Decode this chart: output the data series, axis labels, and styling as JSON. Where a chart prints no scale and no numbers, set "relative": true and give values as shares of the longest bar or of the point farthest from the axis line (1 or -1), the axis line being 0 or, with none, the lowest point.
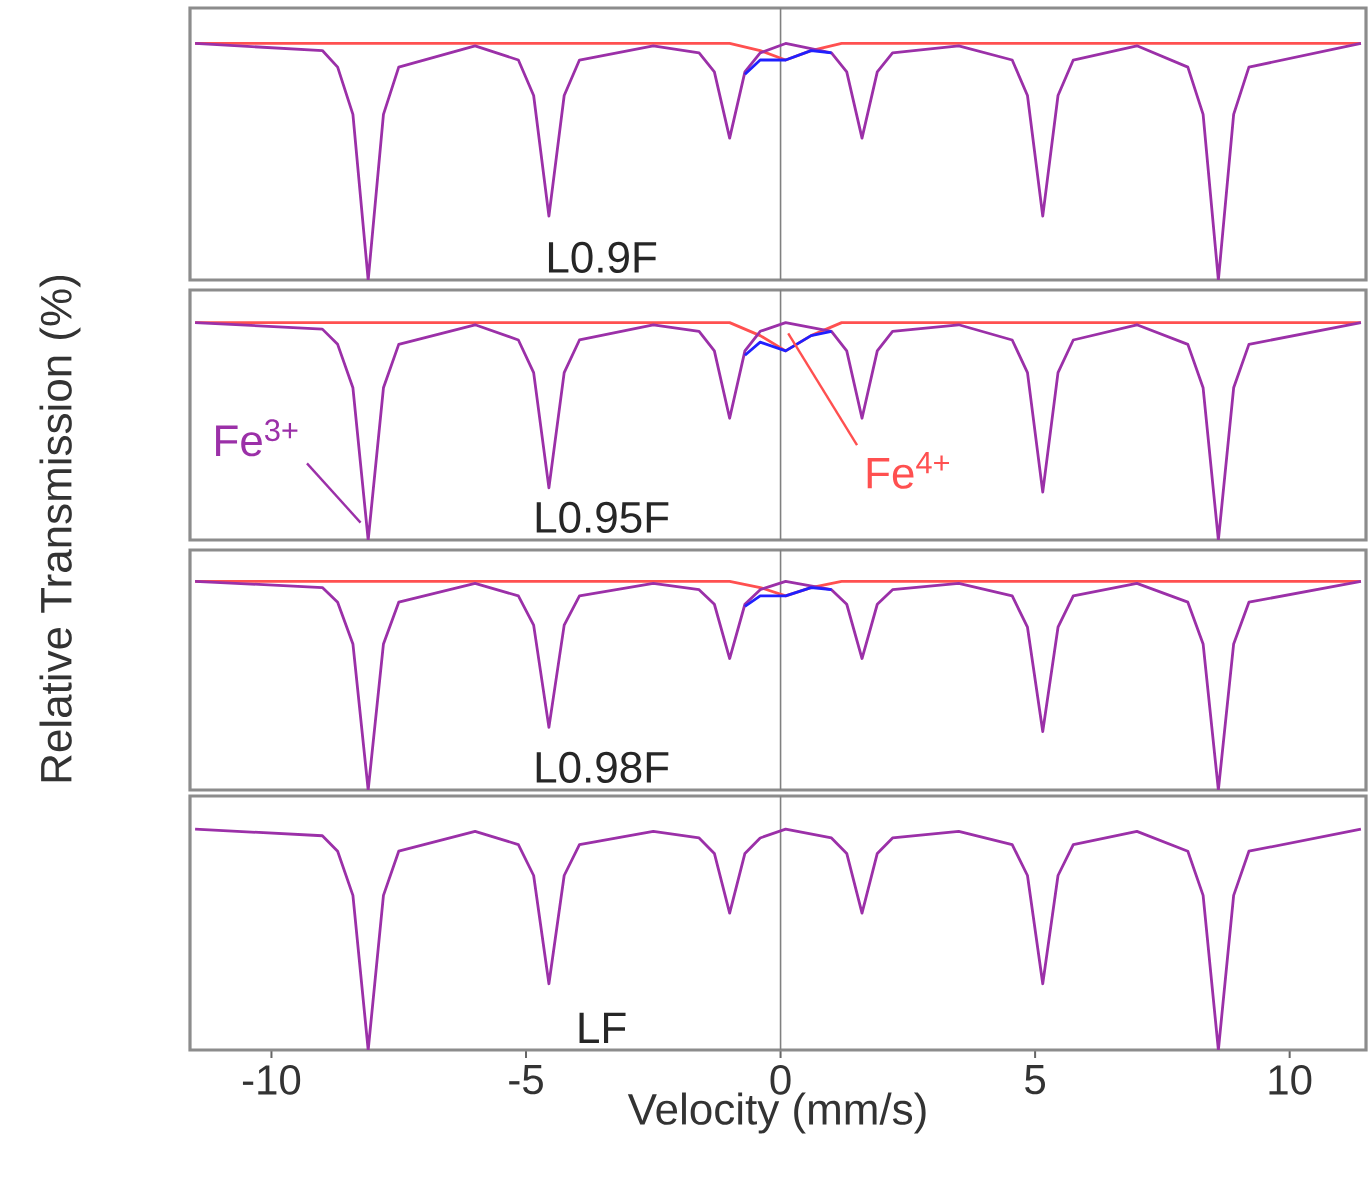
{
  "chart_data": [
    {
      "type": "line",
      "relative": true,
      "ylabel": "Relative Transmission (%)",
      "xlim": [
        -11.6,
        11.5
      ],
      "xticks": [
        -10,
        -5,
        0,
        5,
        10
      ],
      "tick_labels": false,
      "annotations": [
        "L0.9F"
      ],
      "ref_lines": [
        {
          "axis": "x",
          "value": 0,
          "color": "#808080"
        }
      ],
      "x": [
        -11.5,
        -9,
        -8.7,
        -8.4,
        -8.1,
        -7.8,
        -7.5,
        -6,
        -5.15,
        -4.85,
        -4.55,
        -4.25,
        -3.95,
        -2.5,
        -1.6,
        -1.3,
        -1.0,
        -0.7,
        -0.4,
        0.1,
        1.0,
        1.3,
        1.6,
        1.9,
        2.2,
        3.5,
        4.55,
        4.85,
        5.15,
        5.45,
        5.75,
        7.0,
        8.0,
        8.3,
        8.6,
        8.9,
        9.2,
        11.4
      ],
      "series": [
        {
          "color": "#ff5050",
          "x": [
            -11.5,
            -1.0,
            -0.4,
            0.1,
            0.6,
            1.2,
            11.4
          ],
          "values": [
            1,
            1,
            0.97,
            0.93,
            0.97,
            1,
            1
          ]
        },
        {
          "color": "#9b30a8",
          "values": [
            1,
            0.97,
            0.9,
            0.7,
            0,
            0.7,
            0.9,
            0.99,
            0.93,
            0.78,
            0.27,
            0.78,
            0.93,
            0.99,
            0.96,
            0.88,
            0.6,
            0.88,
            0.96,
            1,
            0.96,
            0.88,
            0.6,
            0.88,
            0.96,
            0.99,
            0.93,
            0.78,
            0.27,
            0.78,
            0.93,
            0.99,
            0.9,
            0.7,
            0,
            0.7,
            0.9,
            1
          ]
        },
        {
          "color": "#2020ff",
          "x": [
            -0.7,
            -0.4,
            0.1,
            0.6,
            1.0
          ],
          "values": [
            0.87,
            0.93,
            0.93,
            0.97,
            0.96
          ]
        }
      ]
    },
    {
      "type": "line",
      "relative": true,
      "xlim": [
        -11.6,
        11.5
      ],
      "xticks": [
        -10,
        -5,
        0,
        5,
        10
      ],
      "tick_labels": false,
      "annotations": [
        "L0.95F"
      ],
      "ref_lines": [
        {
          "axis": "x",
          "value": 0,
          "color": "#808080"
        }
      ],
      "x": [
        -11.5,
        -9,
        -8.7,
        -8.4,
        -8.1,
        -7.8,
        -7.5,
        -6,
        -5.15,
        -4.85,
        -4.55,
        -4.25,
        -3.95,
        -2.5,
        -1.6,
        -1.3,
        -1.0,
        -0.7,
        -0.4,
        0.1,
        1.0,
        1.3,
        1.6,
        1.9,
        2.2,
        3.5,
        4.55,
        4.85,
        5.15,
        5.45,
        5.75,
        7.0,
        8.0,
        8.3,
        8.6,
        8.9,
        9.2,
        11.4
      ],
      "series": [
        {
          "name": "Fe$^{4+}$",
          "color": "#ff5050",
          "x": [
            -11.5,
            -1.0,
            -0.4,
            0.1,
            0.6,
            1.2,
            11.4
          ],
          "values": [
            1,
            1,
            0.94,
            0.87,
            0.94,
            1,
            1
          ]
        },
        {
          "name": "Fe$^{3+}$",
          "color": "#9b30a8",
          "values": [
            1,
            0.97,
            0.9,
            0.7,
            0,
            0.7,
            0.9,
            0.99,
            0.92,
            0.77,
            0.24,
            0.77,
            0.92,
            0.99,
            0.96,
            0.87,
            0.56,
            0.87,
            0.96,
            1,
            0.96,
            0.87,
            0.56,
            0.87,
            0.96,
            0.99,
            0.92,
            0.77,
            0.22,
            0.77,
            0.92,
            0.99,
            0.9,
            0.7,
            0,
            0.7,
            0.9,
            1
          ]
        },
        {
          "color": "#2020ff",
          "x": [
            -0.7,
            -0.4,
            0.1,
            0.6,
            1.0
          ],
          "values": [
            0.85,
            0.91,
            0.87,
            0.94,
            0.96
          ]
        }
      ]
    },
    {
      "type": "line",
      "relative": true,
      "xlim": [
        -11.6,
        11.5
      ],
      "xticks": [
        -10,
        -5,
        0,
        5,
        10
      ],
      "tick_labels": false,
      "annotations": [
        "L0.98F"
      ],
      "ref_lines": [
        {
          "axis": "x",
          "value": 0,
          "color": "#808080"
        }
      ],
      "x": [
        -11.5,
        -9,
        -8.7,
        -8.4,
        -8.1,
        -7.8,
        -7.5,
        -6,
        -5.15,
        -4.85,
        -4.55,
        -4.25,
        -3.95,
        -2.5,
        -1.6,
        -1.3,
        -1.0,
        -0.7,
        -0.4,
        0.1,
        1.0,
        1.3,
        1.6,
        1.9,
        2.2,
        3.5,
        4.55,
        4.85,
        5.15,
        5.45,
        5.75,
        7.0,
        8.0,
        8.3,
        8.6,
        8.9,
        9.2,
        11.4
      ],
      "series": [
        {
          "color": "#ff5050",
          "x": [
            -11.5,
            -1.0,
            -0.4,
            0.1,
            0.6,
            1.2,
            11.4
          ],
          "values": [
            1,
            1,
            0.97,
            0.93,
            0.97,
            1,
            1
          ]
        },
        {
          "color": "#9b30a8",
          "values": [
            1,
            0.97,
            0.9,
            0.7,
            0,
            0.7,
            0.9,
            0.99,
            0.93,
            0.79,
            0.3,
            0.79,
            0.93,
            0.99,
            0.96,
            0.89,
            0.63,
            0.89,
            0.96,
            1,
            0.96,
            0.89,
            0.63,
            0.89,
            0.96,
            0.99,
            0.93,
            0.78,
            0.28,
            0.78,
            0.93,
            0.99,
            0.9,
            0.7,
            0,
            0.7,
            0.9,
            1
          ]
        },
        {
          "color": "#2020ff",
          "x": [
            -0.7,
            -0.4,
            0.1,
            0.6,
            1.0
          ],
          "values": [
            0.88,
            0.93,
            0.93,
            0.97,
            0.96
          ]
        }
      ]
    },
    {
      "type": "line",
      "relative": true,
      "xlabel": "Velocity (mm/s)",
      "xlim": [
        -11.6,
        11.5
      ],
      "xticks": [
        -10,
        -5,
        0,
        5,
        10
      ],
      "tick_labels": "x",
      "annotations": [
        "LF"
      ],
      "ref_lines": [
        {
          "axis": "x",
          "value": 0,
          "color": "#808080"
        }
      ],
      "x": [
        -11.5,
        -9,
        -8.7,
        -8.4,
        -8.1,
        -7.8,
        -7.5,
        -6,
        -5.15,
        -4.85,
        -4.55,
        -4.25,
        -3.95,
        -2.5,
        -1.6,
        -1.3,
        -1.0,
        -0.7,
        -0.4,
        0.1,
        1.0,
        1.3,
        1.6,
        1.9,
        2.2,
        3.5,
        4.55,
        4.85,
        5.15,
        5.45,
        5.75,
        7.0,
        8.0,
        8.3,
        8.6,
        8.9,
        9.2,
        11.4
      ],
      "series": [
        {
          "color": "#9b30a8",
          "values": [
            1,
            0.97,
            0.9,
            0.7,
            0,
            0.7,
            0.9,
            0.99,
            0.93,
            0.79,
            0.3,
            0.79,
            0.93,
            0.99,
            0.96,
            0.89,
            0.62,
            0.89,
            0.96,
            1,
            0.96,
            0.89,
            0.62,
            0.89,
            0.96,
            0.99,
            0.93,
            0.79,
            0.3,
            0.79,
            0.93,
            0.99,
            0.9,
            0.7,
            0,
            0.7,
            0.9,
            1
          ]
        }
      ]
    }
  ]
}
